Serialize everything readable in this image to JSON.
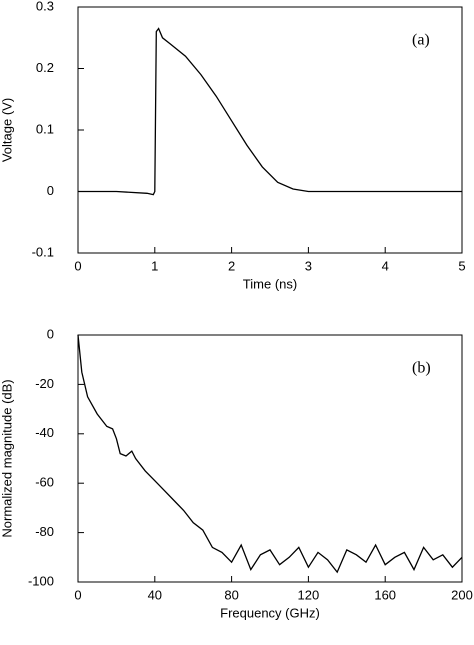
{
  "chart_data": [
    {
      "type": "line",
      "annotation": "(a)",
      "x_label": "Time (ns)",
      "y_label": "Voltage (V)",
      "xlim": [
        0,
        5
      ],
      "ylim": [
        -0.1,
        0.3
      ],
      "xticks": [
        0,
        1,
        2,
        3,
        4,
        5
      ],
      "yticks": [
        -0.1,
        0,
        0.1,
        0.2,
        0.3
      ],
      "x": [
        0,
        0.5,
        0.9,
        0.98,
        1.0,
        1.02,
        1.05,
        1.1,
        1.2,
        1.4,
        1.6,
        1.8,
        2.0,
        2.2,
        2.4,
        2.6,
        2.8,
        3.0,
        3.5,
        4,
        4.5,
        5
      ],
      "series": [
        {
          "color": "#000000",
          "values": [
            0,
            0,
            -0.003,
            -0.005,
            0,
            0.26,
            0.265,
            0.25,
            0.24,
            0.22,
            0.19,
            0.155,
            0.115,
            0.075,
            0.04,
            0.015,
            0.004,
            0,
            0,
            0,
            0,
            0
          ]
        }
      ]
    },
    {
      "type": "line",
      "annotation": "(b)",
      "x_label": "Frequency (GHz)",
      "y_label": "Normalized magnitude (dB)",
      "xlim": [
        0,
        200
      ],
      "ylim": [
        -100,
        0
      ],
      "xticks": [
        0,
        40,
        80,
        120,
        160,
        200
      ],
      "yticks": [
        -100,
        -80,
        -60,
        -40,
        -20,
        0
      ],
      "x": [
        0,
        2,
        5,
        10,
        15,
        18,
        20,
        22,
        25,
        28,
        30,
        35,
        40,
        45,
        50,
        55,
        60,
        65,
        70,
        75,
        80,
        85,
        90,
        95,
        100,
        105,
        110,
        115,
        120,
        125,
        130,
        135,
        140,
        145,
        150,
        155,
        160,
        165,
        170,
        175,
        180,
        185,
        190,
        195,
        200
      ],
      "series": [
        {
          "color": "#000000",
          "values": [
            0,
            -15,
            -25,
            -32,
            -37,
            -38,
            -42,
            -48,
            -49,
            -47,
            -50,
            -55,
            -59,
            -63,
            -67,
            -71,
            -76,
            -79,
            -86,
            -88,
            -92,
            -85,
            -95,
            -89,
            -87,
            -93,
            -90,
            -86,
            -94,
            -88,
            -91,
            -96,
            -87,
            -89,
            -92,
            -85,
            -93,
            -90,
            -88,
            -95,
            -86,
            -91,
            -89,
            -94,
            -90
          ]
        }
      ]
    }
  ]
}
